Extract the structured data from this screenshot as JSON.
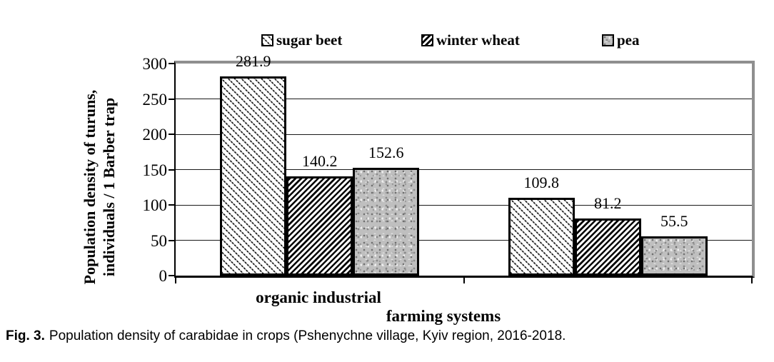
{
  "legend": {
    "items": [
      {
        "label": "sugar beet",
        "pattern": "diagonal-dotted-hatch"
      },
      {
        "label": "winter wheat",
        "pattern": "diagonal-bold-stripes"
      },
      {
        "label": "pea",
        "pattern": "gray-speckle"
      }
    ]
  },
  "y_axis": {
    "title_line1": "Population density of turuns,",
    "title_line2": "individuals / 1 Barber trap"
  },
  "x_axis": {
    "group_label": "organic industrial",
    "axis_title": "farming systems"
  },
  "chart_data": {
    "type": "bar",
    "categories": [
      "organic",
      "industrial"
    ],
    "series": [
      {
        "name": "sugar beet",
        "values": [
          281.9,
          109.8
        ]
      },
      {
        "name": "winter wheat",
        "values": [
          140.2,
          81.2
        ]
      },
      {
        "name": "pea",
        "values": [
          152.6,
          55.5
        ]
      }
    ],
    "title": "",
    "xlabel": "farming systems",
    "ylabel": "Population density of turuns, individuals / 1 Barber trap",
    "ylim": [
      0,
      300
    ],
    "yticks": [
      0,
      50,
      100,
      150,
      200,
      250,
      300
    ],
    "grid": true,
    "legend_position": "top",
    "data_labels": true
  },
  "caption": {
    "prefix": "Fig. 3.",
    "text": "Population density of carabidae in crops (Pshenychne village, Kyiv region, 2016-2018."
  }
}
